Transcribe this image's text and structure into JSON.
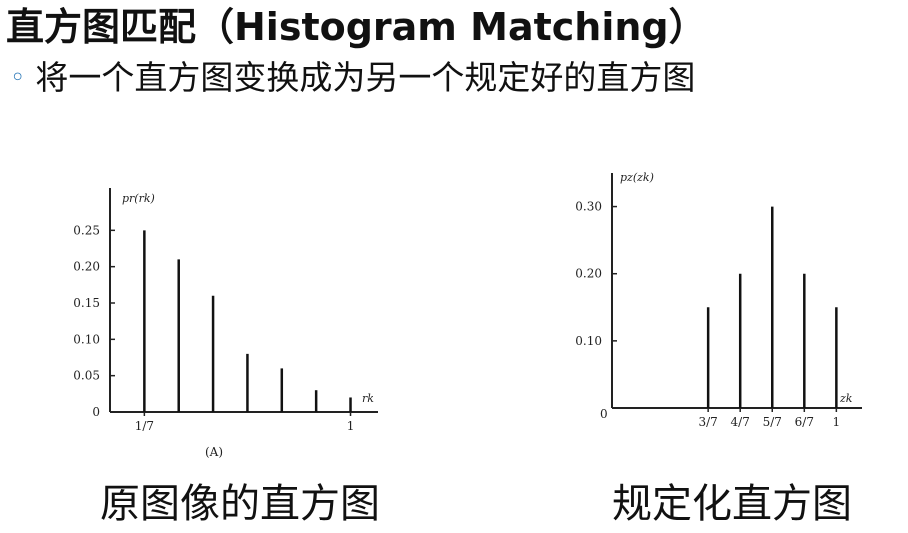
{
  "slide": {
    "title": "直方图匹配（Histogram Matching）",
    "bullet": "将一个直方图变换成为另一个规定好的直方图",
    "bullet_marker": "◦",
    "accent_color": "#2b78b8"
  },
  "captions": {
    "left": "原图像的直方图",
    "right": "规定化直方图"
  },
  "chart_data": [
    {
      "type": "bar",
      "ylabel": "pr(rk)",
      "xlabel": "rk",
      "sublabel": "(A)",
      "x": [
        1,
        2,
        3,
        4,
        5,
        6,
        7
      ],
      "values": [
        0.25,
        0.21,
        0.16,
        0.08,
        0.06,
        0.03,
        0.02
      ],
      "xtick_labels": [
        {
          "x": 1,
          "label": "1/7"
        },
        {
          "x": 7,
          "label": "1"
        }
      ],
      "yticks": [
        0,
        0.05,
        0.1,
        0.15,
        0.2,
        0.25
      ],
      "ytick_labels": [
        "0",
        "0.05",
        "0.10",
        "0.15",
        "0.20",
        "0.25"
      ],
      "xlim": [
        0,
        7.8
      ],
      "ylim": [
        0,
        0.3
      ]
    },
    {
      "type": "bar",
      "ylabel": "pz(zk)",
      "xlabel": "zk",
      "x": [
        3,
        4,
        5,
        6,
        7
      ],
      "values": [
        0.15,
        0.2,
        0.3,
        0.2,
        0.15
      ],
      "xtick_labels": [
        {
          "x": 3,
          "label": "3/7"
        },
        {
          "x": 4,
          "label": "4/7"
        },
        {
          "x": 5,
          "label": "5/7"
        },
        {
          "x": 6,
          "label": "6/7"
        },
        {
          "x": 7,
          "label": "1"
        }
      ],
      "yticks": [
        0.1,
        0.2,
        0.3
      ],
      "ytick_labels": [
        "0.10",
        "0.20",
        "0.30"
      ],
      "origin_label": "0",
      "xlim": [
        0,
        7.8
      ],
      "ylim": [
        0,
        0.35
      ]
    }
  ]
}
